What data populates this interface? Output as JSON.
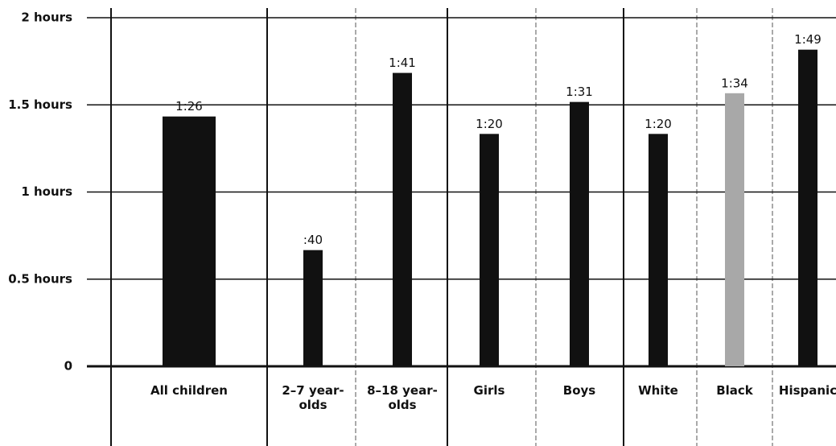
{
  "chart_data": {
    "type": "bar",
    "categories": [
      "All children",
      "2–7 year-olds",
      "8–18 year-olds",
      "Girls",
      "Boys",
      "White",
      "Black",
      "Hispanic"
    ],
    "values": [
      1.4333,
      0.6667,
      1.6833,
      1.3333,
      1.5167,
      1.3333,
      1.5667,
      1.8167
    ],
    "value_labels": [
      "1:26",
      ":40",
      "1:41",
      "1:20",
      "1:31",
      "1:20",
      "1:34",
      "1:49"
    ],
    "colors": [
      "#111111",
      "#111111",
      "#111111",
      "#111111",
      "#111111",
      "#111111",
      "#a8a8a8",
      "#111111"
    ],
    "ylim": [
      0,
      2
    ],
    "yticks": [
      0,
      {
        "value": 0.5,
        "label": "0.5 hours"
      },
      {
        "value": 1,
        "label": "1 hours"
      },
      {
        "value": 1.5,
        "label": "1.5 hours"
      },
      {
        "value": 2,
        "label": "2 hours"
      }
    ],
    "grid": true
  }
}
